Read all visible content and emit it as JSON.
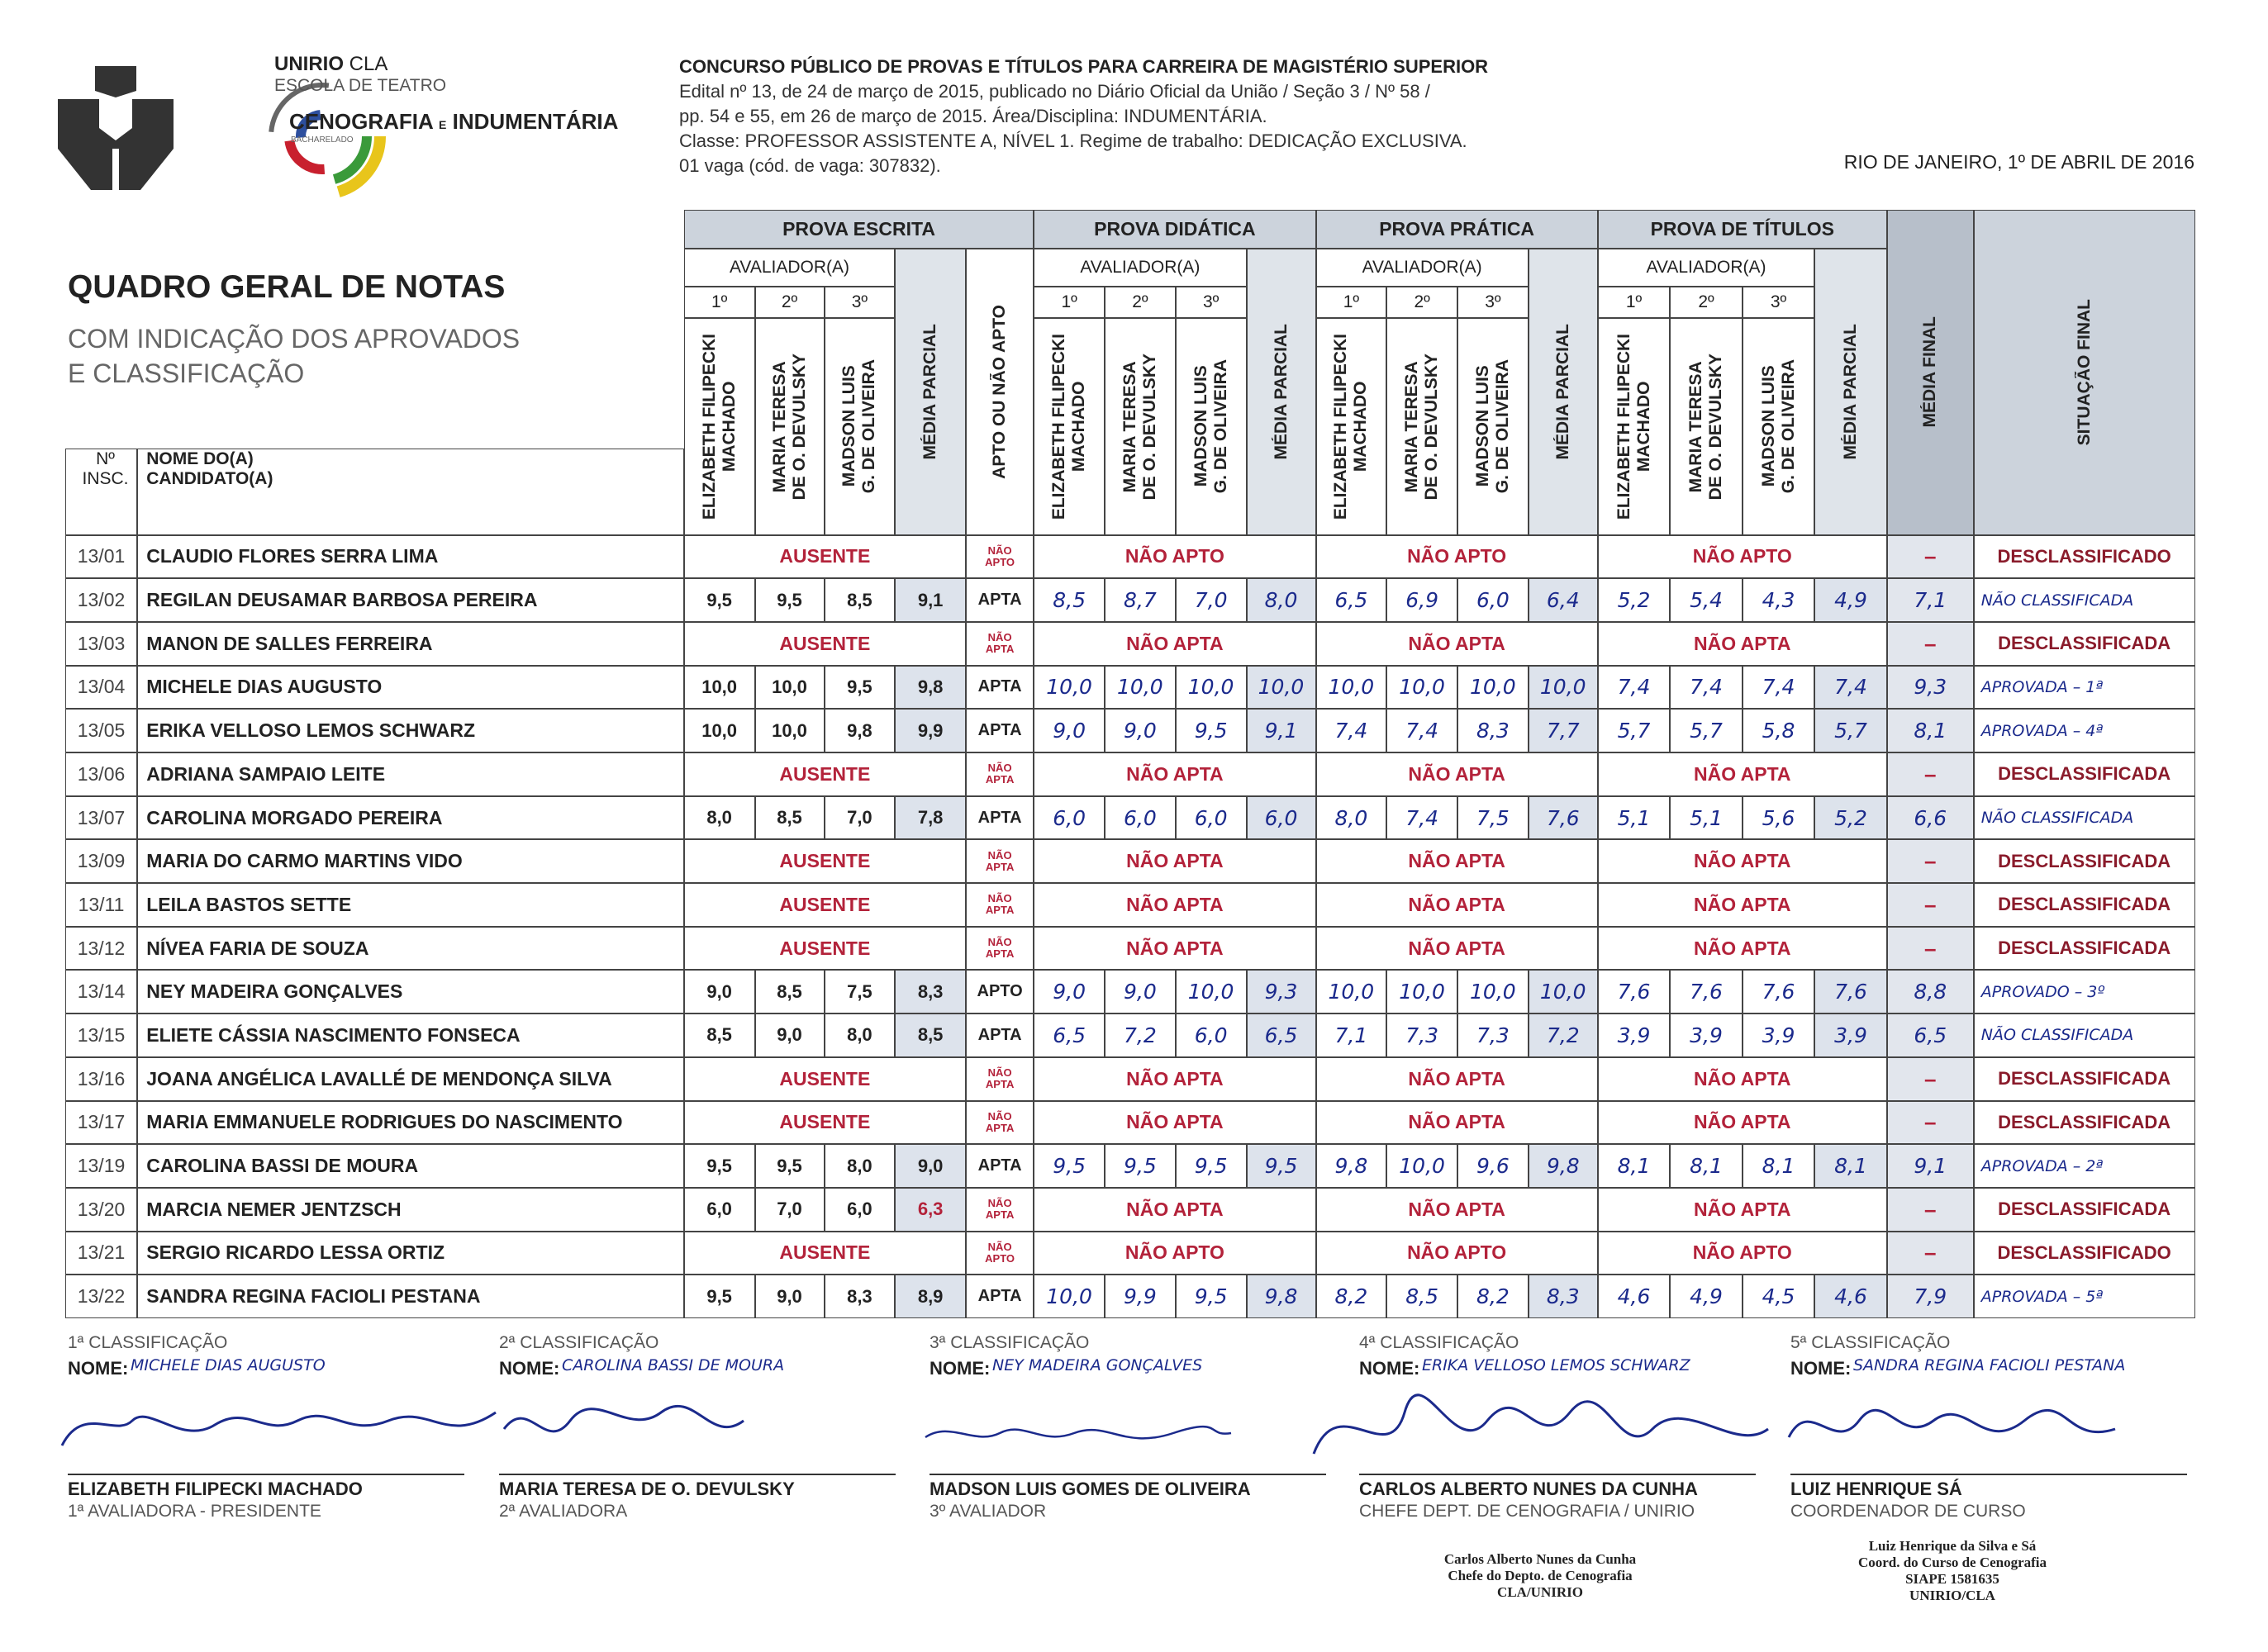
{
  "logo": {
    "unirio": "UNIRIO",
    "cla": "CLA",
    "escola": "ESCOLA DE TEATRO",
    "curso": "CENOGRAFIA",
    "e": "E",
    "curso2": "INDUMENTÁRIA",
    "grau": "BACHARELADO"
  },
  "header": {
    "lines": [
      "CONCURSO PÚBLICO DE PROVAS E TÍTULOS PARA CARREIRA DE MAGISTÉRIO SUPERIOR",
      "Edital nº 13, de 24 de março de 2015, publicado no Diário Oficial da União / Seção 3 / Nº 58 /",
      "pp. 54 e 55, em 26 de março de 2015. Área/Disciplina: INDUMENTÁRIA.",
      "Classe: PROFESSOR ASSISTENTE A, NÍVEL 1. Regime de trabalho: DEDICAÇÃO EXCLUSIVA.",
      "01 vaga (cód. de vaga: 307832)."
    ],
    "date": "RIO DE JANEIRO, 1º DE ABRIL DE 2016"
  },
  "heading": {
    "title": "QUADRO GERAL DE NOTAS",
    "subtitle": [
      "COM INDICAÇÃO DOS APROVADOS",
      "E CLASSIFICAÇÃO"
    ]
  },
  "table": {
    "columns": {
      "insc": [
        "Nº",
        "INSC."
      ],
      "name": [
        "NOME DO(A)",
        "CANDIDATO(A)"
      ],
      "groups": [
        "PROVA ESCRITA",
        "PROVA DIDÁTICA",
        "PROVA PRÁTICA",
        "PROVA DE TÍTULOS"
      ],
      "evaluator_label": "AVALIADOR(A)",
      "ordinals": [
        "1º",
        "2º",
        "3º"
      ],
      "evaluators": [
        [
          "ELIZABETH FILIPECKI",
          "MACHADO"
        ],
        [
          "MARIA TERESA",
          "DE O. DEVULSKY"
        ],
        [
          "MADSON LUIS",
          "G. DE OLIVEIRA"
        ]
      ],
      "partial": "MÉDIA PARCIAL",
      "apto": "APTO OU NÃO APTO",
      "final": "MÉDIA FINAL",
      "situation": "SITUAÇÃO FINAL"
    },
    "rows": [
      {
        "insc": "13/01",
        "name": "CLAUDIO FLORES SERRA LIMA",
        "escrita": "AUSENTE",
        "apto": "NÃO APTO",
        "didatica": "NÃO APTO",
        "pratica": "NÃO APTO",
        "titulos": "NÃO APTO",
        "final": "–",
        "situacao": "DESCLASSIFICADO"
      },
      {
        "insc": "13/02",
        "name": "REGILAN DEUSAMAR BARBOSA PEREIRA",
        "escrita": [
          "9,5",
          "9,5",
          "8,5",
          "9,1"
        ],
        "apto": "APTA",
        "didatica": [
          "8,5",
          "8,7",
          "7,0",
          "8,0"
        ],
        "pratica": [
          "6,5",
          "6,9",
          "6,0",
          "6,4"
        ],
        "titulos": [
          "5,2",
          "5,4",
          "4,3",
          "4,9"
        ],
        "final": "7,1",
        "situacao": "NÃO CLASSIFICADA"
      },
      {
        "insc": "13/03",
        "name": "MANON DE SALLES FERREIRA",
        "escrita": "AUSENTE",
        "apto": "NÃO APTA",
        "didatica": "NÃO APTA",
        "pratica": "NÃO APTA",
        "titulos": "NÃO APTA",
        "final": "–",
        "situacao": "DESCLASSIFICADA"
      },
      {
        "insc": "13/04",
        "name": "MICHELE DIAS AUGUSTO",
        "escrita": [
          "10,0",
          "10,0",
          "9,5",
          "9,8"
        ],
        "apto": "APTA",
        "didatica": [
          "10,0",
          "10,0",
          "10,0",
          "10,0"
        ],
        "pratica": [
          "10,0",
          "10,0",
          "10,0",
          "10,0"
        ],
        "titulos": [
          "7,4",
          "7,4",
          "7,4",
          "7,4"
        ],
        "final": "9,3",
        "situacao": "APROVADA – 1ª"
      },
      {
        "insc": "13/05",
        "name": "ERIKA VELLOSO LEMOS SCHWARZ",
        "escrita": [
          "10,0",
          "10,0",
          "9,8",
          "9,9"
        ],
        "apto": "APTA",
        "didatica": [
          "9,0",
          "9,0",
          "9,5",
          "9,1"
        ],
        "pratica": [
          "7,4",
          "7,4",
          "8,3",
          "7,7"
        ],
        "titulos": [
          "5,7",
          "5,7",
          "5,8",
          "5,7"
        ],
        "final": "8,1",
        "situacao": "APROVADA – 4ª"
      },
      {
        "insc": "13/06",
        "name": "ADRIANA SAMPAIO LEITE",
        "escrita": "AUSENTE",
        "apto": "NÃO APTA",
        "didatica": "NÃO APTA",
        "pratica": "NÃO APTA",
        "titulos": "NÃO APTA",
        "final": "–",
        "situacao": "DESCLASSIFICADA"
      },
      {
        "insc": "13/07",
        "name": "CAROLINA MORGADO PEREIRA",
        "escrita": [
          "8,0",
          "8,5",
          "7,0",
          "7,8"
        ],
        "apto": "APTA",
        "didatica": [
          "6,0",
          "6,0",
          "6,0",
          "6,0"
        ],
        "pratica": [
          "8,0",
          "7,4",
          "7,5",
          "7,6"
        ],
        "titulos": [
          "5,1",
          "5,1",
          "5,6",
          "5,2"
        ],
        "final": "6,6",
        "situacao": "NÃO CLASSIFICADA"
      },
      {
        "insc": "13/09",
        "name": "MARIA DO CARMO MARTINS VIDO",
        "escrita": "AUSENTE",
        "apto": "NÃO APTA",
        "didatica": "NÃO APTA",
        "pratica": "NÃO APTA",
        "titulos": "NÃO APTA",
        "final": "–",
        "situacao": "DESCLASSIFICADA"
      },
      {
        "insc": "13/11",
        "name": "LEILA BASTOS SETTE",
        "escrita": "AUSENTE",
        "apto": "NÃO APTA",
        "didatica": "NÃO APTA",
        "pratica": "NÃO APTA",
        "titulos": "NÃO APTA",
        "final": "–",
        "situacao": "DESCLASSIFICADA"
      },
      {
        "insc": "13/12",
        "name": "NÍVEA FARIA DE SOUZA",
        "escrita": "AUSENTE",
        "apto": "NÃO APTA",
        "didatica": "NÃO APTA",
        "pratica": "NÃO APTA",
        "titulos": "NÃO APTA",
        "final": "–",
        "situacao": "DESCLASSIFICADA"
      },
      {
        "insc": "13/14",
        "name": "NEY MADEIRA GONÇALVES",
        "escrita": [
          "9,0",
          "8,5",
          "7,5",
          "8,3"
        ],
        "apto": "APTO",
        "didatica": [
          "9,0",
          "9,0",
          "10,0",
          "9,3"
        ],
        "pratica": [
          "10,0",
          "10,0",
          "10,0",
          "10,0"
        ],
        "titulos": [
          "7,6",
          "7,6",
          "7,6",
          "7,6"
        ],
        "final": "8,8",
        "situacao": "APROVADO – 3º"
      },
      {
        "insc": "13/15",
        "name": "ELIETE CÁSSIA NASCIMENTO FONSECA",
        "escrita": [
          "8,5",
          "9,0",
          "8,0",
          "8,5"
        ],
        "apto": "APTA",
        "didatica": [
          "6,5",
          "7,2",
          "6,0",
          "6,5"
        ],
        "pratica": [
          "7,1",
          "7,3",
          "7,3",
          "7,2"
        ],
        "titulos": [
          "3,9",
          "3,9",
          "3,9",
          "3,9"
        ],
        "final": "6,5",
        "situacao": "NÃO CLASSIFICADA"
      },
      {
        "insc": "13/16",
        "name": "JOANA ANGÉLICA LAVALLÉ DE MENDONÇA SILVA",
        "escrita": "AUSENTE",
        "apto": "NÃO APTA",
        "didatica": "NÃO APTA",
        "pratica": "NÃO APTA",
        "titulos": "NÃO APTA",
        "final": "–",
        "situacao": "DESCLASSIFICADA"
      },
      {
        "insc": "13/17",
        "name": "MARIA EMMANUELE RODRIGUES DO NASCIMENTO",
        "escrita": "AUSENTE",
        "apto": "NÃO APTA",
        "didatica": "NÃO APTA",
        "pratica": "NÃO APTA",
        "titulos": "NÃO APTA",
        "final": "–",
        "situacao": "DESCLASSIFICADA"
      },
      {
        "insc": "13/19",
        "name": "CAROLINA BASSI DE MOURA",
        "escrita": [
          "9,5",
          "9,5",
          "8,0",
          "9,0"
        ],
        "apto": "APTA",
        "didatica": [
          "9,5",
          "9,5",
          "9,5",
          "9,5"
        ],
        "pratica": [
          "9,8",
          "10,0",
          "9,6",
          "9,8"
        ],
        "titulos": [
          "8,1",
          "8,1",
          "8,1",
          "8,1"
        ],
        "final": "9,1",
        "situacao": "APROVADA – 2ª"
      },
      {
        "insc": "13/20",
        "name": "MARCIA NEMER JENTZSCH",
        "escrita": [
          "6,0",
          "7,0",
          "6,0",
          "6,3"
        ],
        "apto": "NÃO APTA",
        "didatica": "NÃO APTA",
        "pratica": "NÃO APTA",
        "titulos": "NÃO APTA",
        "final": "–",
        "situacao": "DESCLASSIFICADA"
      },
      {
        "insc": "13/21",
        "name": "SERGIO RICARDO LESSA ORTIZ",
        "escrita": "AUSENTE",
        "apto": "NÃO APTO",
        "didatica": "NÃO APTO",
        "pratica": "NÃO APTO",
        "titulos": "NÃO APTO",
        "final": "–",
        "situacao": "DESCLASSIFICADO"
      },
      {
        "insc": "13/22",
        "name": "SANDRA REGINA FACIOLI PESTANA",
        "escrita": [
          "9,5",
          "9,0",
          "8,3",
          "8,9"
        ],
        "apto": "APTA",
        "didatica": [
          "10,0",
          "9,9",
          "9,5",
          "9,8"
        ],
        "pratica": [
          "8,2",
          "8,5",
          "8,2",
          "8,3"
        ],
        "titulos": [
          "4,6",
          "4,9",
          "4,5",
          "4,6"
        ],
        "final": "7,9",
        "situacao": "APROVADA – 5ª"
      }
    ]
  },
  "classifications": [
    {
      "label": "1ª CLASSIFICAÇÃO",
      "name_label": "NOME:",
      "name": "MICHELE DIAS AUGUSTO"
    },
    {
      "label": "2ª CLASSIFICAÇÃO",
      "name_label": "NOME:",
      "name": "CAROLINA BASSI DE MOURA"
    },
    {
      "label": "3ª CLASSIFICAÇÃO",
      "name_label": "NOME:",
      "name": "NEY MADEIRA GONÇALVES"
    },
    {
      "label": "4ª CLASSIFICAÇÃO",
      "name_label": "NOME:",
      "name": "ERIKA VELLOSO LEMOS SCHWARZ"
    },
    {
      "label": "5ª CLASSIFICAÇÃO",
      "name_label": "NOME:",
      "name": "SANDRA REGINA FACIOLI PESTANA"
    }
  ],
  "signatures": [
    {
      "name": "ELIZABETH FILIPECKI MACHADO",
      "role": "1ª AVALIADORA - PRESIDENTE"
    },
    {
      "name": "MARIA TERESA DE O. DEVULSKY",
      "role": "2ª AVALIADORA"
    },
    {
      "name": "MADSON LUIS GOMES DE OLIVEIRA",
      "role": "3º AVALIADOR"
    },
    {
      "name": "CARLOS ALBERTO NUNES DA CUNHA",
      "role": "CHEFE DEPT. DE CENOGRAFIA / UNIRIO"
    },
    {
      "name": "LUIZ HENRIQUE SÁ",
      "role": "COORDENADOR DE CURSO"
    }
  ],
  "stamps": [
    [
      "Carlos Alberto Nunes da Cunha",
      "Chefe do Depto. de Cenografia",
      "CLA/UNIRIO"
    ],
    [
      "Luiz Henrique da Silva e Sá",
      "Coord. do Curso de Cenografia",
      "SIAPE 1581635",
      "UNIRIO/CLA"
    ]
  ]
}
